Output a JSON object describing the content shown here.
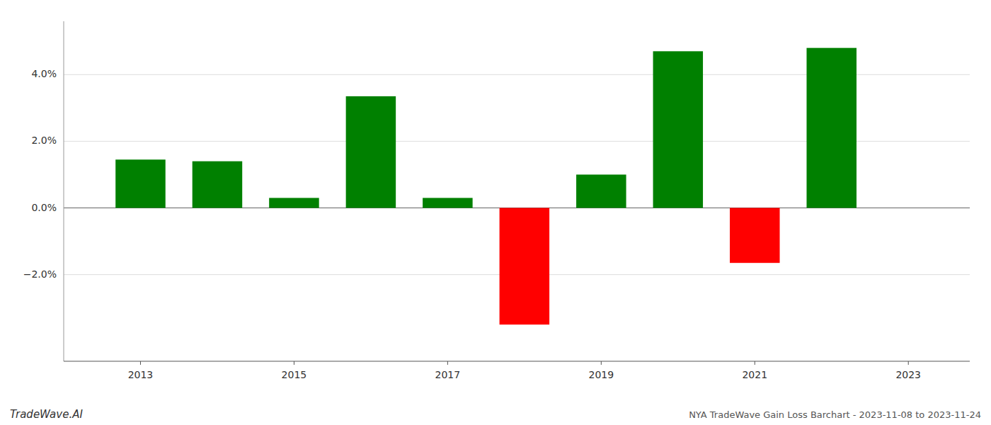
{
  "chart_data": {
    "type": "bar",
    "title": "NYA TradeWave Gain Loss Barchart - 2023-11-08 to 2023-11-24",
    "annotations": [
      "TradeWave.AI"
    ],
    "x": [
      2013,
      2014,
      2015,
      2016,
      2017,
      2018,
      2019,
      2020,
      2021,
      2022
    ],
    "values": [
      0.0145,
      0.014,
      0.003,
      0.0335,
      0.003,
      -0.035,
      0.01,
      0.047,
      -0.0165,
      0.048
    ],
    "colors": [
      "#008000",
      "#008000",
      "#008000",
      "#008000",
      "#008000",
      "#ff0000",
      "#008000",
      "#008000",
      "#ff0000",
      "#008000"
    ],
    "xlim": [
      2012.0,
      2023.8
    ],
    "xticks": [
      2013,
      2015,
      2017,
      2019,
      2021,
      2023
    ],
    "ylim": [
      -0.046,
      0.056
    ],
    "yticks": [
      {
        "value": -0.02,
        "label": "−2.0%"
      },
      {
        "value": 0.0,
        "label": "0.0%"
      },
      {
        "value": 0.02,
        "label": "2.0%"
      },
      {
        "value": 0.04,
        "label": "4.0%"
      }
    ],
    "grid": true
  }
}
